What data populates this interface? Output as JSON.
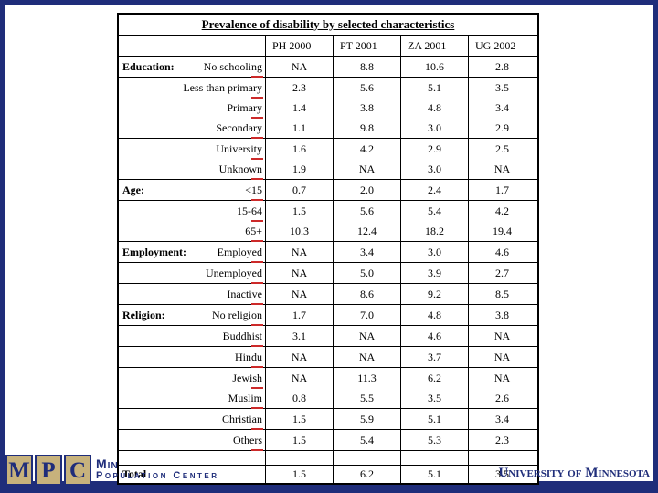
{
  "table": {
    "title": "Prevalence of disability by selected characteristics",
    "columns": [
      "PH 2000",
      "PT 2001",
      "ZA 2001",
      "UG 2002"
    ],
    "rows": [
      {
        "section": "Education:",
        "label": "No schooling",
        "values": [
          "NA",
          "8.8",
          "10.6",
          "2.8"
        ],
        "line_below": true
      },
      {
        "section": "",
        "label": "Less than primary",
        "values": [
          "2.3",
          "5.6",
          "5.1",
          "3.5"
        ],
        "line_below": false
      },
      {
        "section": "",
        "label": "Primary",
        "values": [
          "1.4",
          "3.8",
          "4.8",
          "3.4"
        ],
        "line_below": false
      },
      {
        "section": "",
        "label": "Secondary",
        "values": [
          "1.1",
          "9.8",
          "3.0",
          "2.9"
        ],
        "line_below": true
      },
      {
        "section": "",
        "label": "University",
        "values": [
          "1.6",
          "4.2",
          "2.9",
          "2.5"
        ],
        "line_below": false
      },
      {
        "section": "",
        "label": "Unknown",
        "values": [
          "1.9",
          "NA",
          "3.0",
          "NA"
        ],
        "line_below": true
      },
      {
        "section": "Age:",
        "label": "<15",
        "values": [
          "0.7",
          "2.0",
          "2.4",
          "1.7"
        ],
        "line_below": true
      },
      {
        "section": "",
        "label": "15-64",
        "values": [
          "1.5",
          "5.6",
          "5.4",
          "4.2"
        ],
        "line_below": false
      },
      {
        "section": "",
        "label": "65+",
        "values": [
          "10.3",
          "12.4",
          "18.2",
          "19.4"
        ],
        "line_below": true
      },
      {
        "section": "Employment:",
        "label": "Employed",
        "values": [
          "NA",
          "3.4",
          "3.0",
          "4.6"
        ],
        "line_below": true
      },
      {
        "section": "",
        "label": "Unemployed",
        "values": [
          "NA",
          "5.0",
          "3.9",
          "2.7"
        ],
        "line_below": true
      },
      {
        "section": "",
        "label": "Inactive",
        "values": [
          "NA",
          "8.6",
          "9.2",
          "8.5"
        ],
        "line_below": true
      },
      {
        "section": "Religion:",
        "label": "No religion",
        "values": [
          "1.7",
          "7.0",
          "4.8",
          "3.8"
        ],
        "line_below": true
      },
      {
        "section": "",
        "label": "Buddhist",
        "values": [
          "3.1",
          "NA",
          "4.6",
          "NA"
        ],
        "line_below": true
      },
      {
        "section": "",
        "label": "Hindu",
        "values": [
          "NA",
          "NA",
          "3.7",
          "NA"
        ],
        "line_below": true
      },
      {
        "section": "",
        "label": "Jewish",
        "values": [
          "NA",
          "11.3",
          "6.2",
          "NA"
        ],
        "line_below": false
      },
      {
        "section": "",
        "label": "Muslim",
        "values": [
          "0.8",
          "5.5",
          "3.5",
          "2.6"
        ],
        "line_below": true
      },
      {
        "section": "",
        "label": "Christian",
        "values": [
          "1.5",
          "5.9",
          "5.1",
          "3.4"
        ],
        "line_below": true
      },
      {
        "section": "",
        "label": "Others",
        "values": [
          "1.5",
          "5.4",
          "5.3",
          "2.3"
        ],
        "line_below": true
      },
      {
        "section": "",
        "label": "",
        "values": [
          "",
          "",
          "",
          ""
        ],
        "line_below": true,
        "empty": true
      },
      {
        "section": "Total",
        "label": "",
        "values": [
          "1.5",
          "6.2",
          "5.1",
          "3.5"
        ],
        "line_below": false,
        "total": true
      }
    ]
  },
  "footer": {
    "logo_letters": [
      "M",
      "P",
      "C"
    ],
    "logo_line1": "Min",
    "logo_line2": "Population Center",
    "university": "University of Minnesota"
  },
  "colors": {
    "frame_navy": "#1f2d7a",
    "logo_tan": "#c7b27c",
    "red_tick": "#cc2a2a",
    "table_border": "#000000"
  }
}
